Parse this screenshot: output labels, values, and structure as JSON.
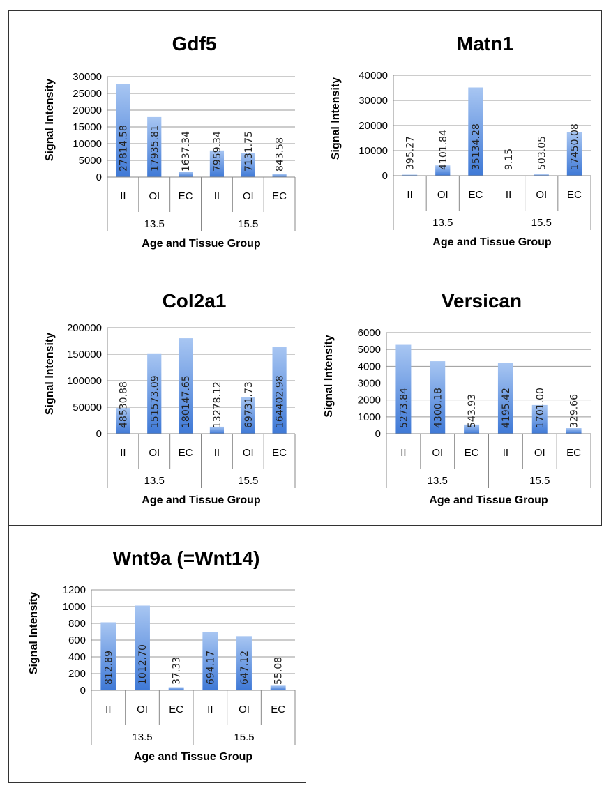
{
  "palette": {
    "bar_top": "#a8c6f2",
    "bar_bottom": "#3f79d6",
    "grid": "#999999",
    "axis": "#888888"
  },
  "chart_data": [
    {
      "type": "bar",
      "title": "Gdf5",
      "ylabel": "Signal Intensity",
      "xlabel": "Age and Tissue Group",
      "categories": [
        "II",
        "OI",
        "EC",
        "II",
        "OI",
        "EC"
      ],
      "groups": [
        {
          "label": "13.5",
          "span": 3
        },
        {
          "label": "15.5",
          "span": 3
        }
      ],
      "values": [
        27814.58,
        17935.81,
        1637.34,
        7959.34,
        7131.75,
        843.58
      ],
      "data_labels": [
        "27814.58",
        "17935.81",
        "1637.34",
        "7959.34",
        "7131.75",
        "843.58"
      ],
      "ylim": [
        0,
        30000
      ],
      "yticks": [
        0,
        5000,
        10000,
        15000,
        20000,
        25000,
        30000
      ],
      "grid": true
    },
    {
      "type": "bar",
      "title": "Matn1",
      "ylabel": "Signal Intensity",
      "xlabel": "Age and Tissue Group",
      "categories": [
        "II",
        "OI",
        "EC",
        "II",
        "OI",
        "EC"
      ],
      "groups": [
        {
          "label": "13.5",
          "span": 3
        },
        {
          "label": "15.5",
          "span": 3
        }
      ],
      "values": [
        395.27,
        4101.84,
        35134.28,
        9.15,
        503.05,
        17450.08
      ],
      "data_labels": [
        "395.27",
        "4101.84",
        "35134.28",
        "9.15",
        "503.05",
        "17450.08"
      ],
      "ylim": [
        0,
        40000
      ],
      "yticks": [
        0,
        10000,
        20000,
        30000,
        40000
      ],
      "grid": true
    },
    {
      "type": "bar",
      "title": "Col2a1",
      "ylabel": "Signal Intensity",
      "xlabel": "Age and Tissue Group",
      "categories": [
        "II",
        "OI",
        "EC",
        "II",
        "OI",
        "EC"
      ],
      "groups": [
        {
          "label": "13.5",
          "span": 3
        },
        {
          "label": "15.5",
          "span": 3
        }
      ],
      "values": [
        48530.88,
        151573.09,
        180147.65,
        13278.12,
        69731.73,
        164402.98
      ],
      "data_labels": [
        "48530.88",
        "151573.09",
        "180147.65",
        "13278.12",
        "69731.73",
        "164402.98"
      ],
      "ylim": [
        0,
        200000
      ],
      "yticks": [
        0,
        50000,
        100000,
        150000,
        200000
      ],
      "grid": true
    },
    {
      "type": "bar",
      "title": "Versican",
      "ylabel": "Signal Intensity",
      "xlabel": "Age and Tissue Group",
      "categories": [
        "II",
        "OI",
        "EC",
        "II",
        "OI",
        "EC"
      ],
      "groups": [
        {
          "label": "13.5",
          "span": 3
        },
        {
          "label": "15.5",
          "span": 3
        }
      ],
      "values": [
        5273.84,
        4300.18,
        543.93,
        4195.42,
        1701.0,
        329.66
      ],
      "data_labels": [
        "5273.84",
        "4300.18",
        "543.93",
        "4195.42",
        "1701.00",
        "329.66"
      ],
      "ylim": [
        0,
        6000
      ],
      "yticks": [
        0,
        1000,
        2000,
        3000,
        4000,
        5000,
        6000
      ],
      "grid": true
    },
    {
      "type": "bar",
      "title": "Wnt9a (=Wnt14)",
      "ylabel": "Signal Intensity",
      "xlabel": "Age and Tissue Group",
      "categories": [
        "II",
        "OI",
        "EC",
        "II",
        "OI",
        "EC"
      ],
      "groups": [
        {
          "label": "13.5",
          "span": 3
        },
        {
          "label": "15.5",
          "span": 3
        }
      ],
      "values": [
        812.89,
        1012.7,
        37.33,
        694.17,
        647.12,
        55.08
      ],
      "data_labels": [
        "812.89",
        "1012.70",
        "37.33",
        "694.17",
        "647.12",
        "55.08"
      ],
      "ylim": [
        0,
        1200
      ],
      "yticks": [
        0,
        200,
        400,
        600,
        800,
        1000,
        1200
      ],
      "grid": true
    }
  ]
}
